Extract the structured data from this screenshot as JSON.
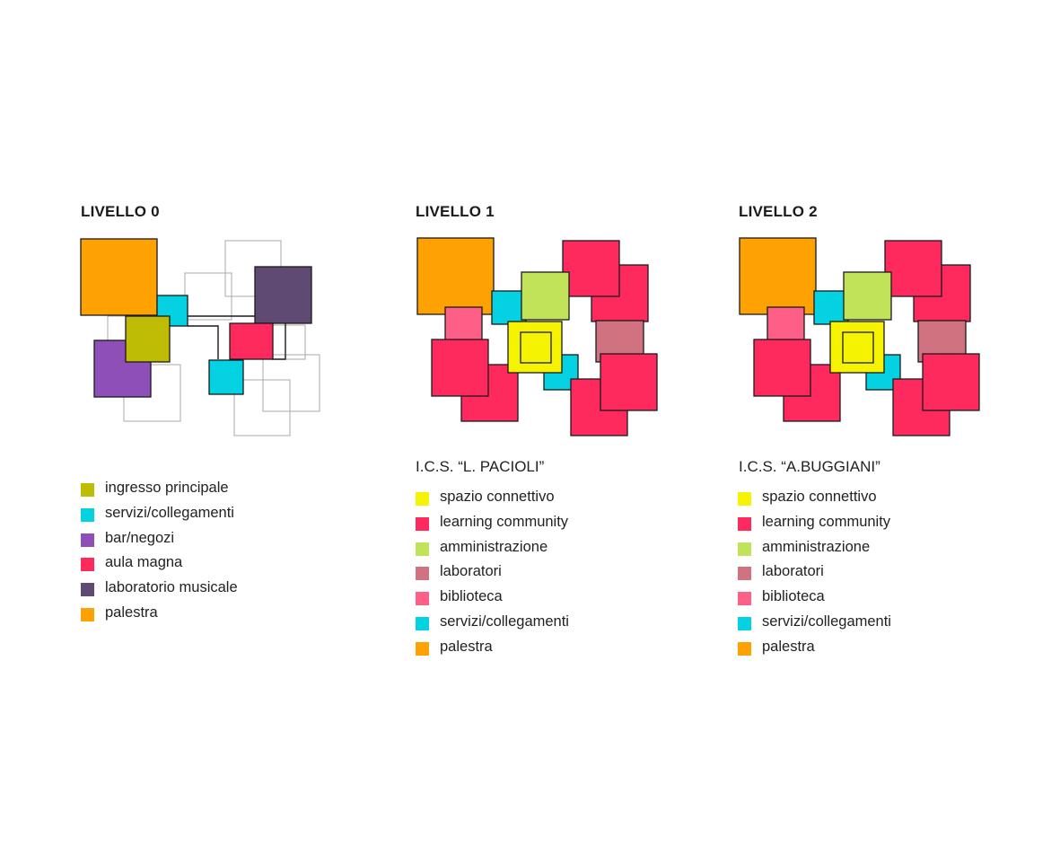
{
  "colors": {
    "ingresso": "#bfbc06",
    "servizi": "#04d2e2",
    "bar": "#8e4fb8",
    "aula": "#fe2a5e",
    "lab_musicale": "#5e4a72",
    "palestra": "#fea103",
    "spazio": "#f6f300",
    "learning": "#fe2a5e",
    "amministrazione": "#c0e35a",
    "laboratori": "#d07280",
    "biblioteca": "#fe5f86",
    "outline": "#a8a8a8"
  },
  "panels": [
    {
      "title": "LIVELLO 0",
      "subtitle": "",
      "legend": [
        {
          "label": "ingresso principale",
          "color": "#bfbc06"
        },
        {
          "label": "servizi/collegamenti",
          "color": "#04d2e2"
        },
        {
          "label": "bar/negozi",
          "color": "#8e4fb8"
        },
        {
          "label": "aula magna",
          "color": "#fe2a5e"
        },
        {
          "label": "laboratorio musicale",
          "color": "#5e4a72"
        },
        {
          "label": "palestra",
          "color": "#fea103"
        }
      ]
    },
    {
      "title": "LIVELLO 1",
      "subtitle": "I.C.S. “L. PACIOLI”",
      "legend": [
        {
          "label": "spazio connettivo",
          "color": "#f6f300"
        },
        {
          "label": "learning community",
          "color": "#fe2a5e"
        },
        {
          "label": "amministrazione",
          "color": "#c0e35a"
        },
        {
          "label": "laboratori",
          "color": "#d07280"
        },
        {
          "label": "biblioteca",
          "color": "#fe5f86"
        },
        {
          "label": "servizi/collegamenti",
          "color": "#04d2e2"
        },
        {
          "label": "palestra",
          "color": "#fea103"
        }
      ]
    },
    {
      "title": "LIVELLO 2",
      "subtitle": "I.C.S. “A.BUGGIANI”",
      "legend": [
        {
          "label": "spazio connettivo",
          "color": "#f6f300"
        },
        {
          "label": "learning community",
          "color": "#fe2a5e"
        },
        {
          "label": "amministrazione",
          "color": "#c0e35a"
        },
        {
          "label": "laboratori",
          "color": "#d07280"
        },
        {
          "label": "biblioteca",
          "color": "#fe5f86"
        },
        {
          "label": "servizi/collegamenti",
          "color": "#04d2e2"
        },
        {
          "label": "palestra",
          "color": "#fea103"
        }
      ]
    }
  ]
}
